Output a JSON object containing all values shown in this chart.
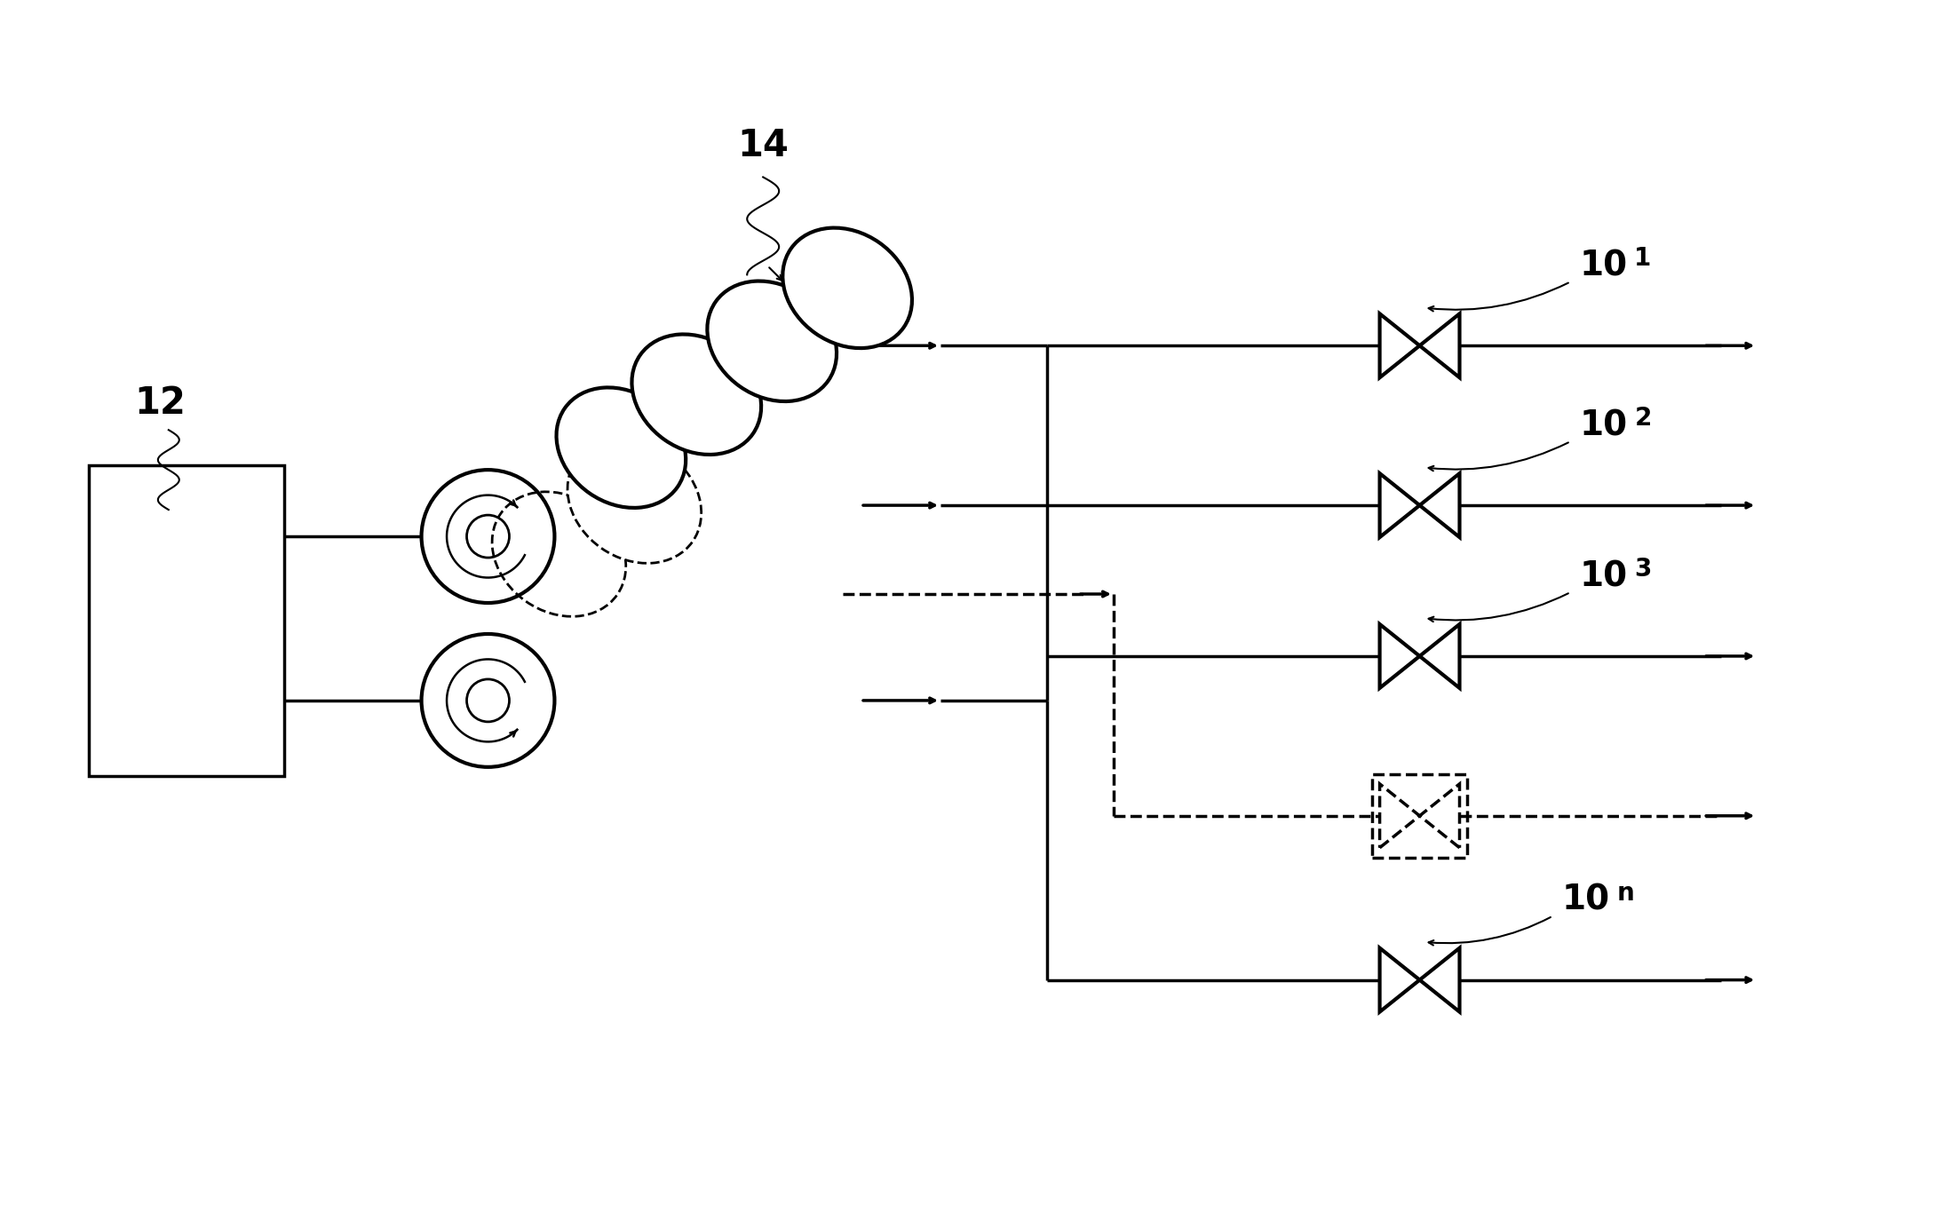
{
  "bg_color": "#ffffff",
  "line_color": "#000000",
  "fig_width": 21.98,
  "fig_height": 13.74,
  "label_12": "12",
  "label_14": "14"
}
